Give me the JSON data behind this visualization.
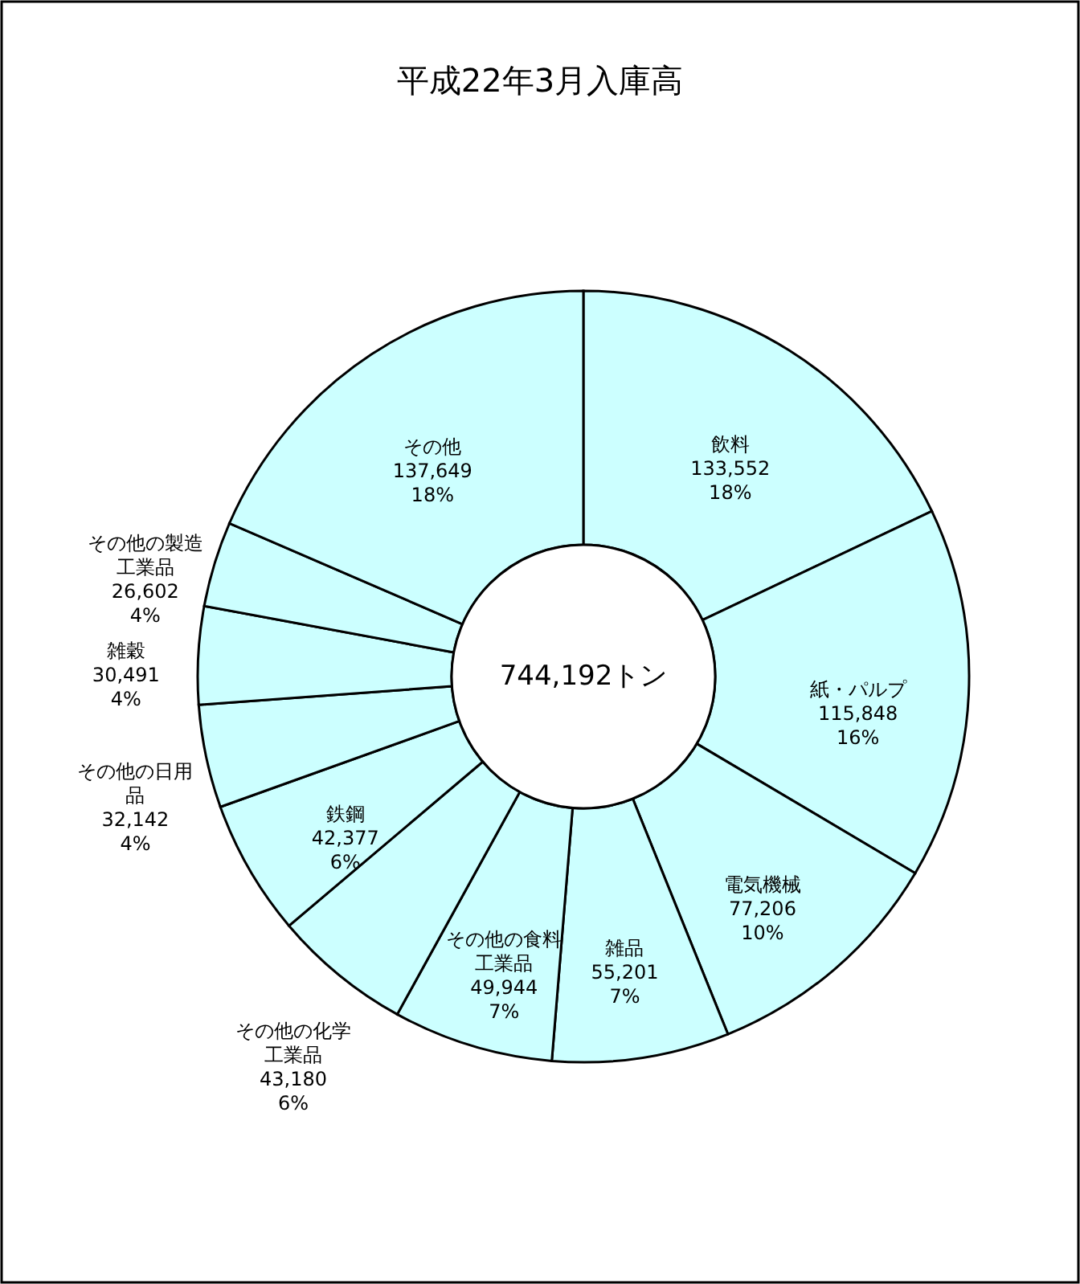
{
  "chart_data": {
    "type": "donut",
    "title": "平成22年3月入庫高",
    "categories": [
      "飲料",
      "紙・パルプ",
      "電気機械",
      "雑品",
      "その他の食料工業品",
      "その他の化学工業品",
      "鉄鋼",
      "その他の日用品",
      "雑穀",
      "その他の製造工業品",
      "その他"
    ],
    "values": [
      133552,
      115848,
      77206,
      55201,
      49944,
      43180,
      42377,
      32142,
      30491,
      26602,
      137649
    ],
    "value_labels": [
      "133,552\n18%",
      "115,848\n16%",
      "77,206\n10%",
      "55,201\n7%",
      "49,944\n7%",
      "43,180\n6%",
      "42,377\n6%",
      "32,142\n4%",
      "30,491\n4%",
      "26,602\n4%",
      "137,649\n18%"
    ],
    "colors": [
      "#ccffff",
      "#ccffff",
      "#ccffff",
      "#ccffff",
      "#ccffff",
      "#ccffff",
      "#ccffff",
      "#ccffff",
      "#ccffff",
      "#ccffff",
      "#ccffff"
    ],
    "annotations": [
      "744,192トン"
    ],
    "legend": false
  }
}
